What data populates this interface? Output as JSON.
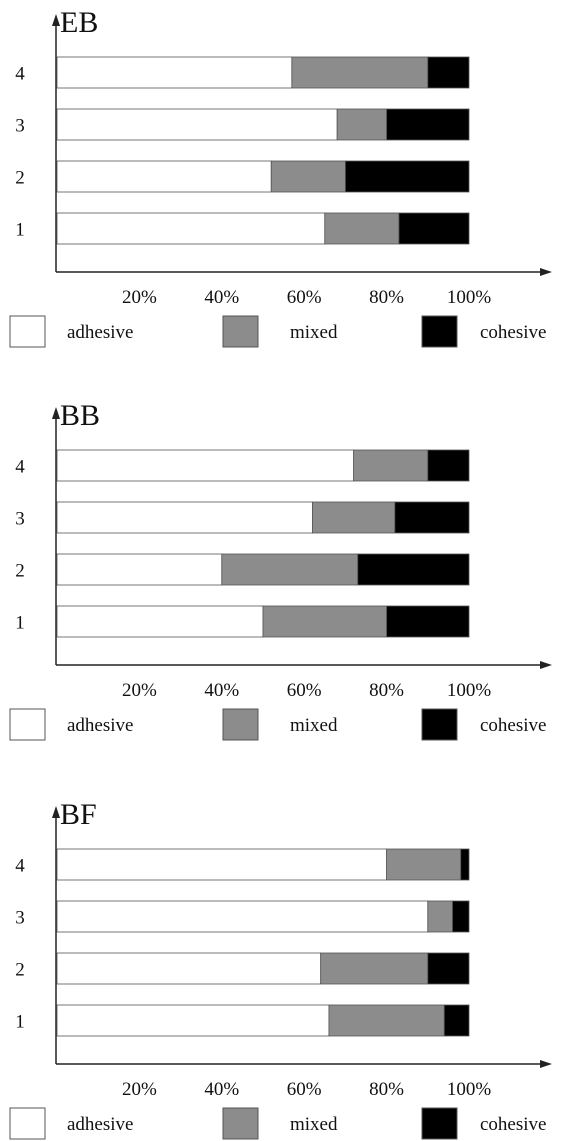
{
  "colors": {
    "adhesive": "#ffffff",
    "mixed": "#8c8c8c",
    "cohesive": "#000000",
    "axis": "#222222",
    "edge": "#555555"
  },
  "legend": [
    {
      "key": "adhesive",
      "label": "adhesive"
    },
    {
      "key": "mixed",
      "label": "mixed"
    },
    {
      "key": "cohesive",
      "label": "cohesive"
    }
  ],
  "chart_data": [
    {
      "type": "bar",
      "orientation": "horizontal",
      "stacked": true,
      "title": "EB",
      "categories": [
        "1",
        "2",
        "3",
        "4"
      ],
      "xlim": [
        0,
        100
      ],
      "xticks": [
        "20%",
        "40%",
        "60%",
        "80%",
        "100%"
      ],
      "series": [
        {
          "name": "adhesive",
          "values": [
            65,
            52,
            68,
            57
          ]
        },
        {
          "name": "mixed",
          "values": [
            18,
            18,
            12,
            33
          ]
        },
        {
          "name": "cohesive",
          "values": [
            17,
            30,
            20,
            10
          ]
        }
      ]
    },
    {
      "type": "bar",
      "orientation": "horizontal",
      "stacked": true,
      "title": "BB",
      "categories": [
        "1",
        "2",
        "3",
        "4"
      ],
      "xlim": [
        0,
        100
      ],
      "xticks": [
        "20%",
        "40%",
        "60%",
        "80%",
        "100%"
      ],
      "series": [
        {
          "name": "adhesive",
          "values": [
            50,
            40,
            62,
            72
          ]
        },
        {
          "name": "mixed",
          "values": [
            30,
            33,
            20,
            18
          ]
        },
        {
          "name": "cohesive",
          "values": [
            20,
            27,
            18,
            10
          ]
        }
      ]
    },
    {
      "type": "bar",
      "orientation": "horizontal",
      "stacked": true,
      "title": "BF",
      "categories": [
        "1",
        "2",
        "3",
        "4"
      ],
      "xlim": [
        0,
        100
      ],
      "xticks": [
        "20%",
        "40%",
        "60%",
        "80%",
        "100%"
      ],
      "series": [
        {
          "name": "adhesive",
          "values": [
            66,
            64,
            90,
            80
          ]
        },
        {
          "name": "mixed",
          "values": [
            28,
            26,
            6,
            18
          ]
        },
        {
          "name": "cohesive",
          "values": [
            6,
            10,
            4,
            2
          ]
        }
      ]
    }
  ]
}
